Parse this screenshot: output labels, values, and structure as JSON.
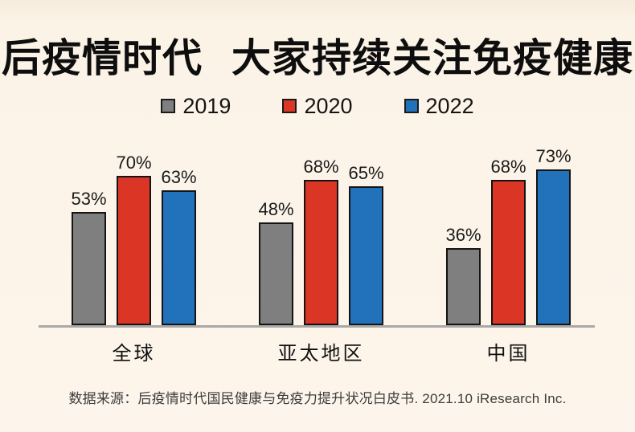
{
  "title": "后疫情时代  大家持续关注免疫健康",
  "legend": [
    {
      "label": "2019",
      "color": "#7F7F7F"
    },
    {
      "label": "2020",
      "color": "#DB3525"
    },
    {
      "label": "2022",
      "color": "#2272BB"
    }
  ],
  "chart_data": {
    "type": "bar",
    "categories": [
      "全球",
      "亚太地区",
      "中国"
    ],
    "series": [
      {
        "name": "2019",
        "color": "#7F7F7F",
        "values": [
          53,
          48,
          36
        ]
      },
      {
        "name": "2020",
        "color": "#DB3525",
        "values": [
          70,
          68,
          68
        ]
      },
      {
        "name": "2022",
        "color": "#2272BB",
        "values": [
          63,
          65,
          73
        ]
      }
    ],
    "value_suffix": "%",
    "ylim": [
      0,
      100
    ],
    "grid": false,
    "legend_position": "top",
    "axis_color": "#A9A9A9",
    "bar_border_color": "#141414"
  },
  "source_note": "数据来源：后疫情时代国民健康与免疫力提升状况白皮书. 2021.10 iResearch Inc.",
  "colors": {
    "background": "#FDF5EB",
    "title_text": "#0E0E0E",
    "label_text": "#1A1A1A",
    "source_text": "#3C3C3C"
  }
}
